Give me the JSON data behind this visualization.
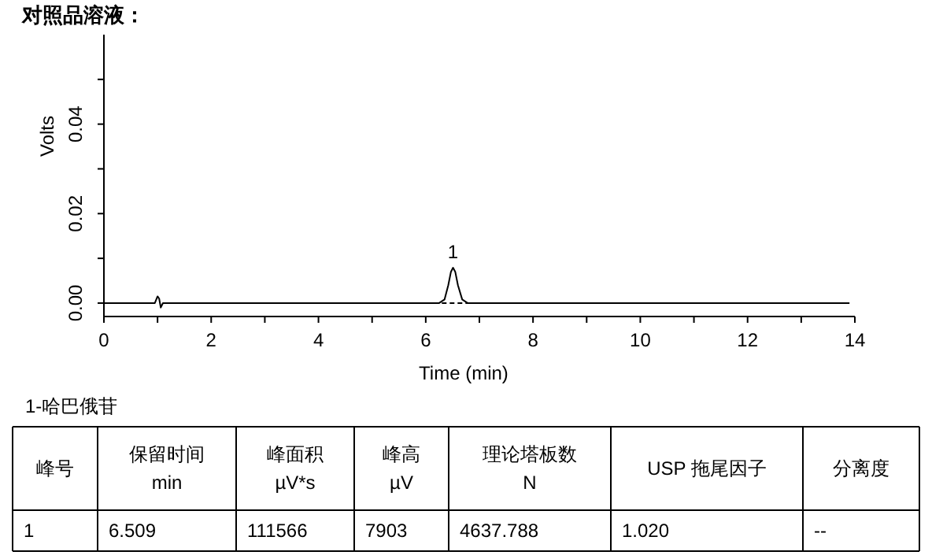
{
  "chart_data": {
    "type": "line",
    "title": "对照品溶液：",
    "xlabel": "Time (min)",
    "ylabel": "Volts",
    "xlim": [
      0,
      14
    ],
    "ylim": [
      -0.003,
      0.06
    ],
    "xticks": [
      0,
      {
        "value": 1,
        "label": null
      },
      2,
      {
        "value": 3,
        "label": null
      },
      4,
      {
        "value": 5,
        "label": null
      },
      6,
      {
        "value": 7,
        "label": null
      },
      8,
      {
        "value": 9,
        "label": null
      },
      10,
      {
        "value": 11,
        "label": null
      },
      12,
      {
        "value": 13,
        "label": null
      },
      14
    ],
    "yticks": [
      {
        "value": 0,
        "label": "0.00"
      },
      {
        "value": 0.01,
        "label": null
      },
      {
        "value": 0.02,
        "label": "0.02"
      },
      {
        "value": 0.03,
        "label": null
      },
      {
        "value": 0.04,
        "label": "0.04"
      },
      {
        "value": 0.05,
        "label": null
      }
    ],
    "grid": false,
    "series": [
      {
        "color": "#000000",
        "line_style": "solid",
        "x": [
          0,
          0.95,
          1.0,
          1.03,
          1.06,
          1.1,
          6.25,
          6.35,
          6.42,
          6.47,
          6.509,
          6.55,
          6.6,
          6.68,
          6.78,
          13.9
        ],
        "values": [
          0,
          0,
          0.0015,
          0.001,
          -0.001,
          0,
          0,
          0.0008,
          0.004,
          0.007,
          0.0079,
          0.007,
          0.004,
          0.0008,
          0,
          0
        ]
      },
      {
        "color": "#000000",
        "line_style": "dashed",
        "x": [
          6.3,
          6.78
        ],
        "values": [
          0,
          0
        ]
      }
    ],
    "annotations": [
      {
        "text": "1",
        "x": 6.509,
        "y": 0.0079
      },
      "1-哈巴俄苷",
      "峰号",
      "保留时间\nmin",
      "峰面积\nµV*s",
      "峰高\nµV",
      "理论塔板数\nN",
      "USP 拖尾因子",
      "分离度",
      "1",
      "6.509",
      "111566",
      "7903",
      "4637.788",
      "1.020",
      "--"
    ]
  }
}
